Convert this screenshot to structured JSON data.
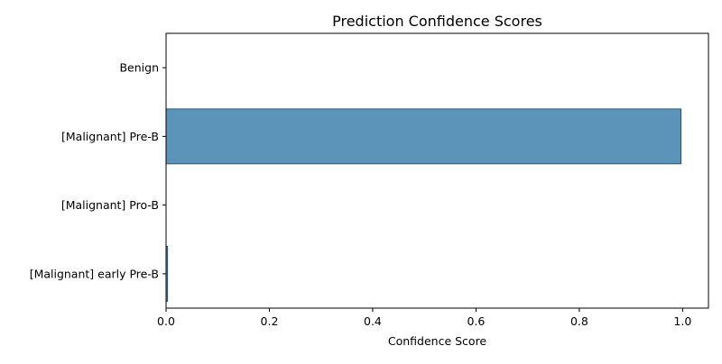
{
  "chart_data": {
    "type": "bar",
    "orientation": "horizontal",
    "title": "Prediction Confidence Scores",
    "xlabel": "Confidence Score",
    "ylabel": "",
    "xlim": [
      0,
      1.05
    ],
    "xticks": [
      0.0,
      0.2,
      0.4,
      0.6,
      0.8,
      1.0
    ],
    "xtick_labels": [
      "0.0",
      "0.2",
      "0.4",
      "0.6",
      "0.8",
      "1.0"
    ],
    "categories": [
      "Benign",
      "[Malignant] Pre-B",
      "[Malignant] Pro-B",
      "[Malignant] early Pre-B"
    ],
    "values": [
      0.0,
      0.997,
      0.0,
      0.003
    ],
    "bar_color": "#5b93b9",
    "edge_color": "#1f3f5a",
    "grid": false,
    "legend": "none"
  }
}
